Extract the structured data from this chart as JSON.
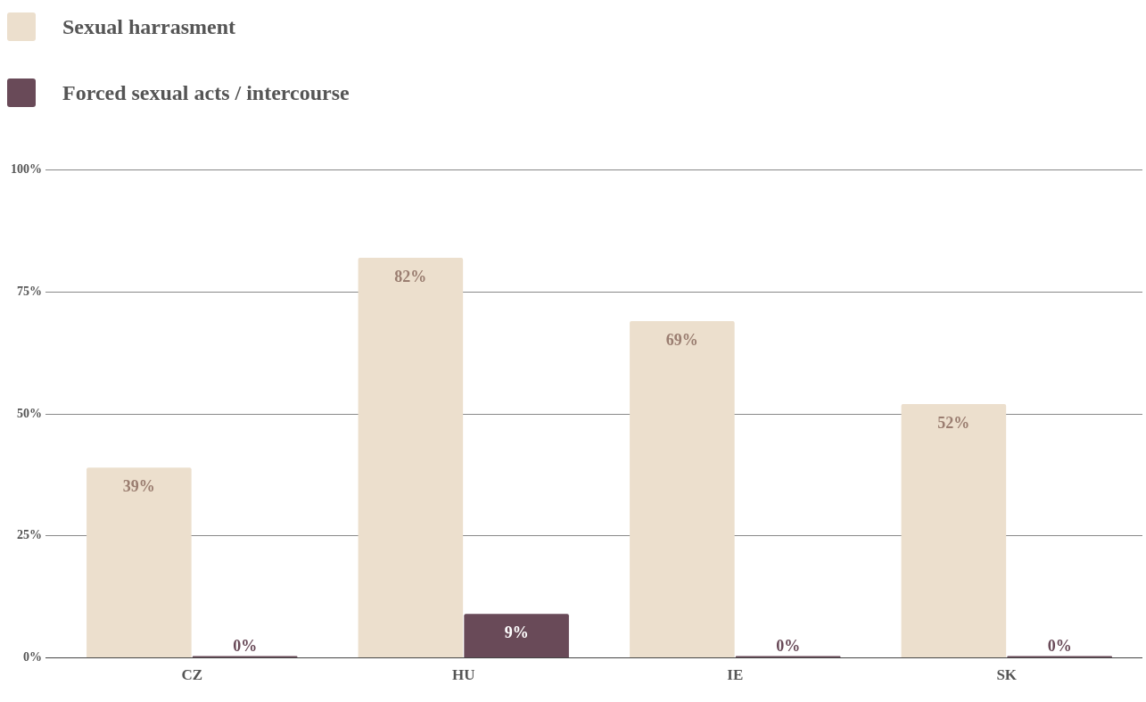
{
  "chart_data": {
    "type": "bar",
    "categories": [
      "CZ",
      "HU",
      "IE",
      "SK"
    ],
    "series": [
      {
        "name": "Sexual harrasment",
        "color": "#ecdfcd",
        "values": [
          39,
          82,
          69,
          52
        ],
        "value_labels": [
          "39%",
          "82%",
          "69%",
          "52%"
        ]
      },
      {
        "name": "Forced sexual acts / intercourse",
        "color": "#694a58",
        "values": [
          0,
          9,
          0,
          0
        ],
        "value_labels": [
          "0%",
          "9%",
          "0%",
          "0%"
        ]
      }
    ],
    "ylim": [
      0,
      100
    ],
    "yticks": [
      {
        "value": 0,
        "label": "0%"
      },
      {
        "value": 25,
        "label": "25%"
      },
      {
        "value": 50,
        "label": "50%"
      },
      {
        "value": 75,
        "label": "75%"
      },
      {
        "value": 100,
        "label": "100%"
      }
    ],
    "grid": "y",
    "legend": "top left"
  }
}
